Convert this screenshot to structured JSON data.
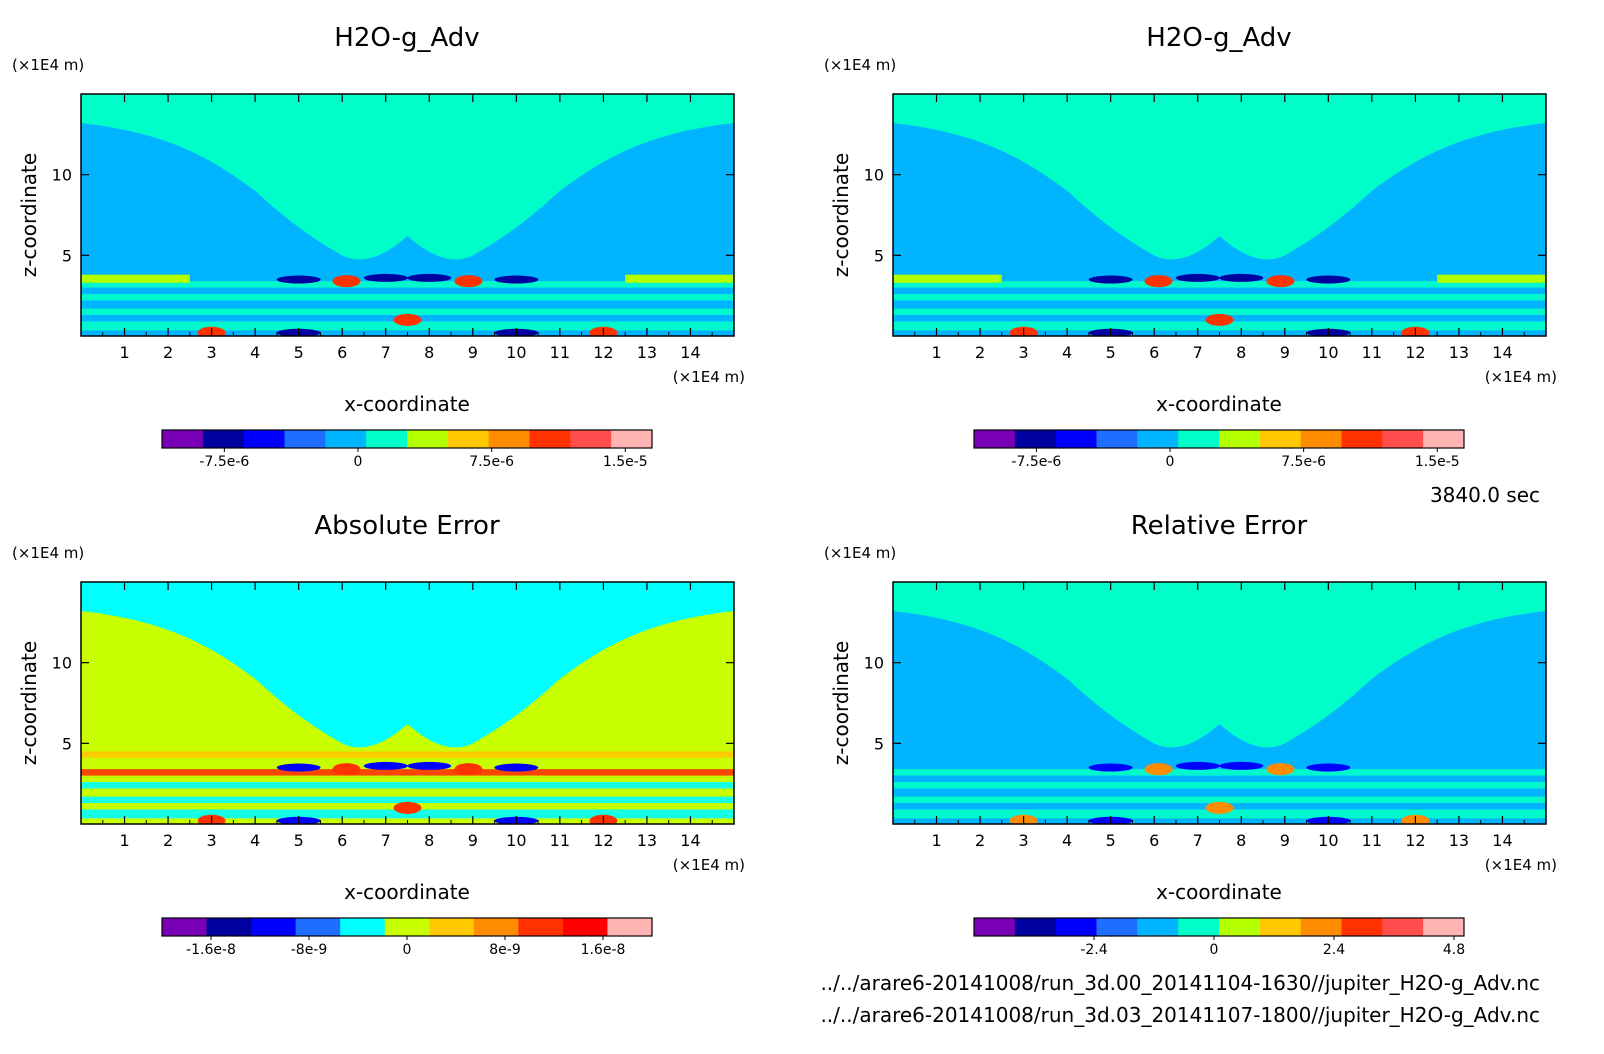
{
  "footer": {
    "time_label": "3840.0 sec",
    "file_1": "../../arare6-20141008/run_3d.00_20141104-1630//jupiter_H2O-g_Adv.nc",
    "file_2": "../../arare6-20141008/run_3d.03_20141107-1800//jupiter_H2O-g_Adv.nc"
  },
  "chart_data": [
    {
      "type": "heatmap",
      "title": "H2O-g_Adv",
      "xlabel": "x-coordinate",
      "ylabel": "z-coordinate",
      "x_unit": "(×1E4 m)",
      "y_unit": "(×1E4 m)",
      "xlim": [
        0,
        15
      ],
      "ylim": [
        0,
        15
      ],
      "x_ticks": [
        1,
        2,
        3,
        4,
        5,
        6,
        7,
        8,
        9,
        10,
        11,
        12,
        13,
        14
      ],
      "y_ticks": [
        5,
        10
      ],
      "colorbar": {
        "colors": [
          "#7a00b5",
          "#0000a0",
          "#0000ff",
          "#1e6fff",
          "#00b4ff",
          "#00ffc8",
          "#b4ff00",
          "#ffc800",
          "#ff8c00",
          "#ff3200",
          "#ff4e4e",
          "#ffb4b4"
        ],
        "tick_values": [
          -7.5e-06,
          0,
          7.5e-06,
          1.5e-05
        ],
        "tick_labels": [
          "-7.5e-6",
          "0",
          "7.5e-6",
          "1.5e-5"
        ],
        "range": [
          -1.1e-05,
          1.65e-05
        ]
      },
      "dominant_level": "0",
      "style": "h2o"
    },
    {
      "type": "heatmap",
      "title": "H2O-g_Adv",
      "xlabel": "x-coordinate",
      "ylabel": "z-coordinate",
      "x_unit": "(×1E4 m)",
      "y_unit": "(×1E4 m)",
      "xlim": [
        0,
        15
      ],
      "ylim": [
        0,
        15
      ],
      "x_ticks": [
        1,
        2,
        3,
        4,
        5,
        6,
        7,
        8,
        9,
        10,
        11,
        12,
        13,
        14
      ],
      "y_ticks": [
        5,
        10
      ],
      "colorbar": {
        "colors": [
          "#7a00b5",
          "#0000a0",
          "#0000ff",
          "#1e6fff",
          "#00b4ff",
          "#00ffc8",
          "#b4ff00",
          "#ffc800",
          "#ff8c00",
          "#ff3200",
          "#ff4e4e",
          "#ffb4b4"
        ],
        "tick_values": [
          -7.5e-06,
          0,
          7.5e-06,
          1.5e-05
        ],
        "tick_labels": [
          "-7.5e-6",
          "0",
          "7.5e-6",
          "1.5e-5"
        ],
        "range": [
          -1.1e-05,
          1.65e-05
        ]
      },
      "dominant_level": "0",
      "style": "h2o"
    },
    {
      "type": "heatmap",
      "title": "Absolute Error",
      "xlabel": "x-coordinate",
      "ylabel": "z-coordinate",
      "x_unit": "(×1E4 m)",
      "y_unit": "(×1E4 m)",
      "xlim": [
        0,
        15
      ],
      "ylim": [
        0,
        15
      ],
      "x_ticks": [
        1,
        2,
        3,
        4,
        5,
        6,
        7,
        8,
        9,
        10,
        11,
        12,
        13,
        14
      ],
      "y_ticks": [
        5,
        10
      ],
      "colorbar": {
        "colors": [
          "#7a00b5",
          "#0000a0",
          "#0000ff",
          "#1e6fff",
          "#00ffff",
          "#c8ff00",
          "#ffc800",
          "#ff8c00",
          "#ff3200",
          "#ff0000",
          "#ffb4b4"
        ],
        "tick_values": [
          -1.6e-08,
          -8e-09,
          0,
          8e-09,
          1.6e-08
        ],
        "tick_labels": [
          "-1.6e-8",
          "-8e-9",
          "0",
          "8e-9",
          "1.6e-8"
        ],
        "range": [
          -2e-08,
          2e-08
        ]
      },
      "dominant_level": "0",
      "style": "abs"
    },
    {
      "type": "heatmap",
      "title": "Relative Error",
      "xlabel": "x-coordinate",
      "ylabel": "z-coordinate",
      "x_unit": "(×1E4 m)",
      "y_unit": "(×1E4 m)",
      "xlim": [
        0,
        15
      ],
      "ylim": [
        0,
        15
      ],
      "x_ticks": [
        1,
        2,
        3,
        4,
        5,
        6,
        7,
        8,
        9,
        10,
        11,
        12,
        13,
        14
      ],
      "y_ticks": [
        5,
        10
      ],
      "colorbar": {
        "colors": [
          "#7a00b5",
          "#0000a0",
          "#0000ff",
          "#1e6fff",
          "#00b4ff",
          "#00ffc8",
          "#b4ff00",
          "#ffc800",
          "#ff8c00",
          "#ff3200",
          "#ff4e4e",
          "#ffb4b4"
        ],
        "tick_values": [
          -2.4,
          0,
          2.4,
          4.8
        ],
        "tick_labels": [
          "-2.4",
          "0",
          "2.4",
          "4.8"
        ],
        "range": [
          -4.8,
          5.0
        ]
      },
      "dominant_level": "0",
      "style": "rel"
    }
  ]
}
